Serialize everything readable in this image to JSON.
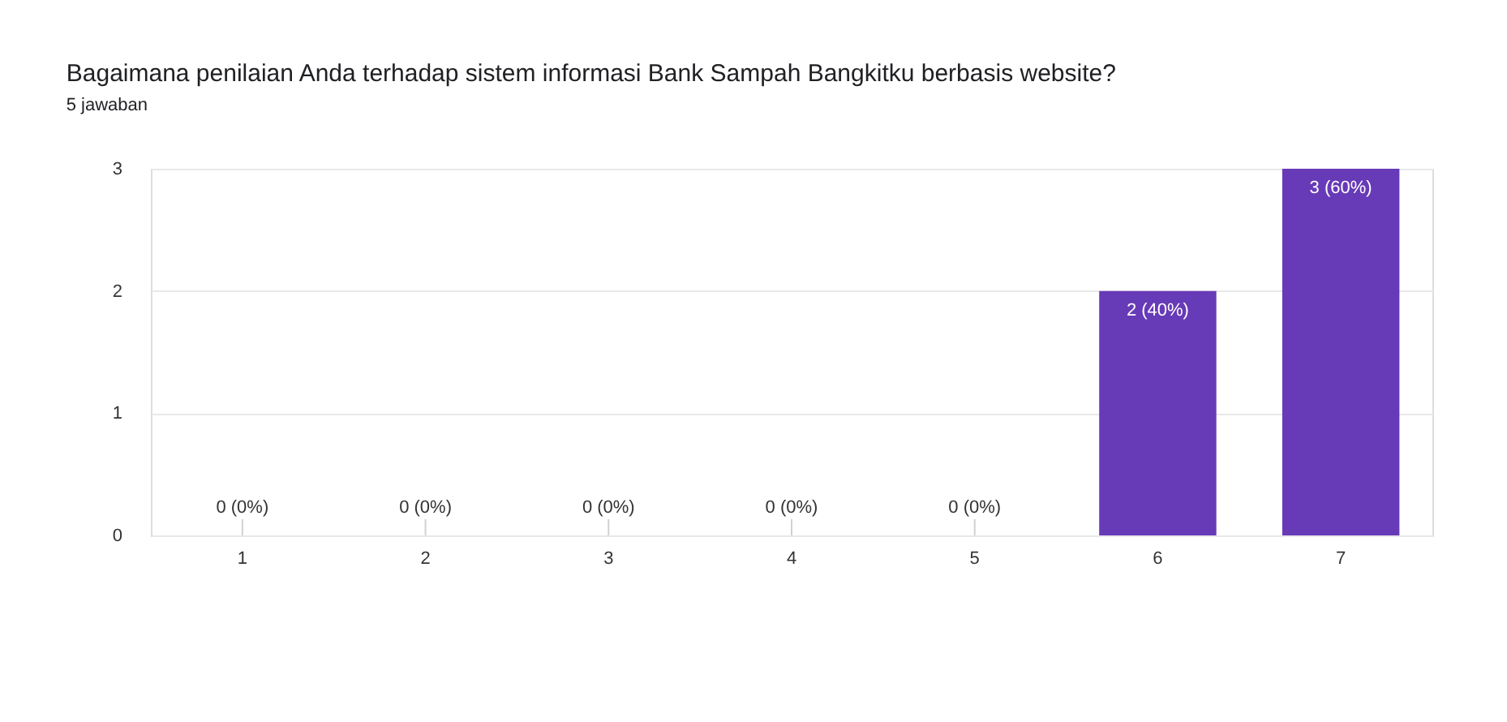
{
  "chart_data": {
    "type": "bar",
    "title": "Bagaimana penilaian Anda terhadap sistem informasi Bank Sampah Bangkitku berbasis website?",
    "subtitle": "5 jawaban",
    "categories": [
      "1",
      "2",
      "3",
      "4",
      "5",
      "6",
      "7"
    ],
    "values": [
      0,
      0,
      0,
      0,
      0,
      2,
      3
    ],
    "value_labels": [
      "0 (0%)",
      "0 (0%)",
      "0 (0%)",
      "0 (0%)",
      "0 (0%)",
      "2 (40%)",
      "3 (60%)"
    ],
    "color": "#673ab7",
    "ylim": [
      0,
      3
    ],
    "yticks": [
      0,
      1,
      2,
      3
    ],
    "grid": "y"
  }
}
